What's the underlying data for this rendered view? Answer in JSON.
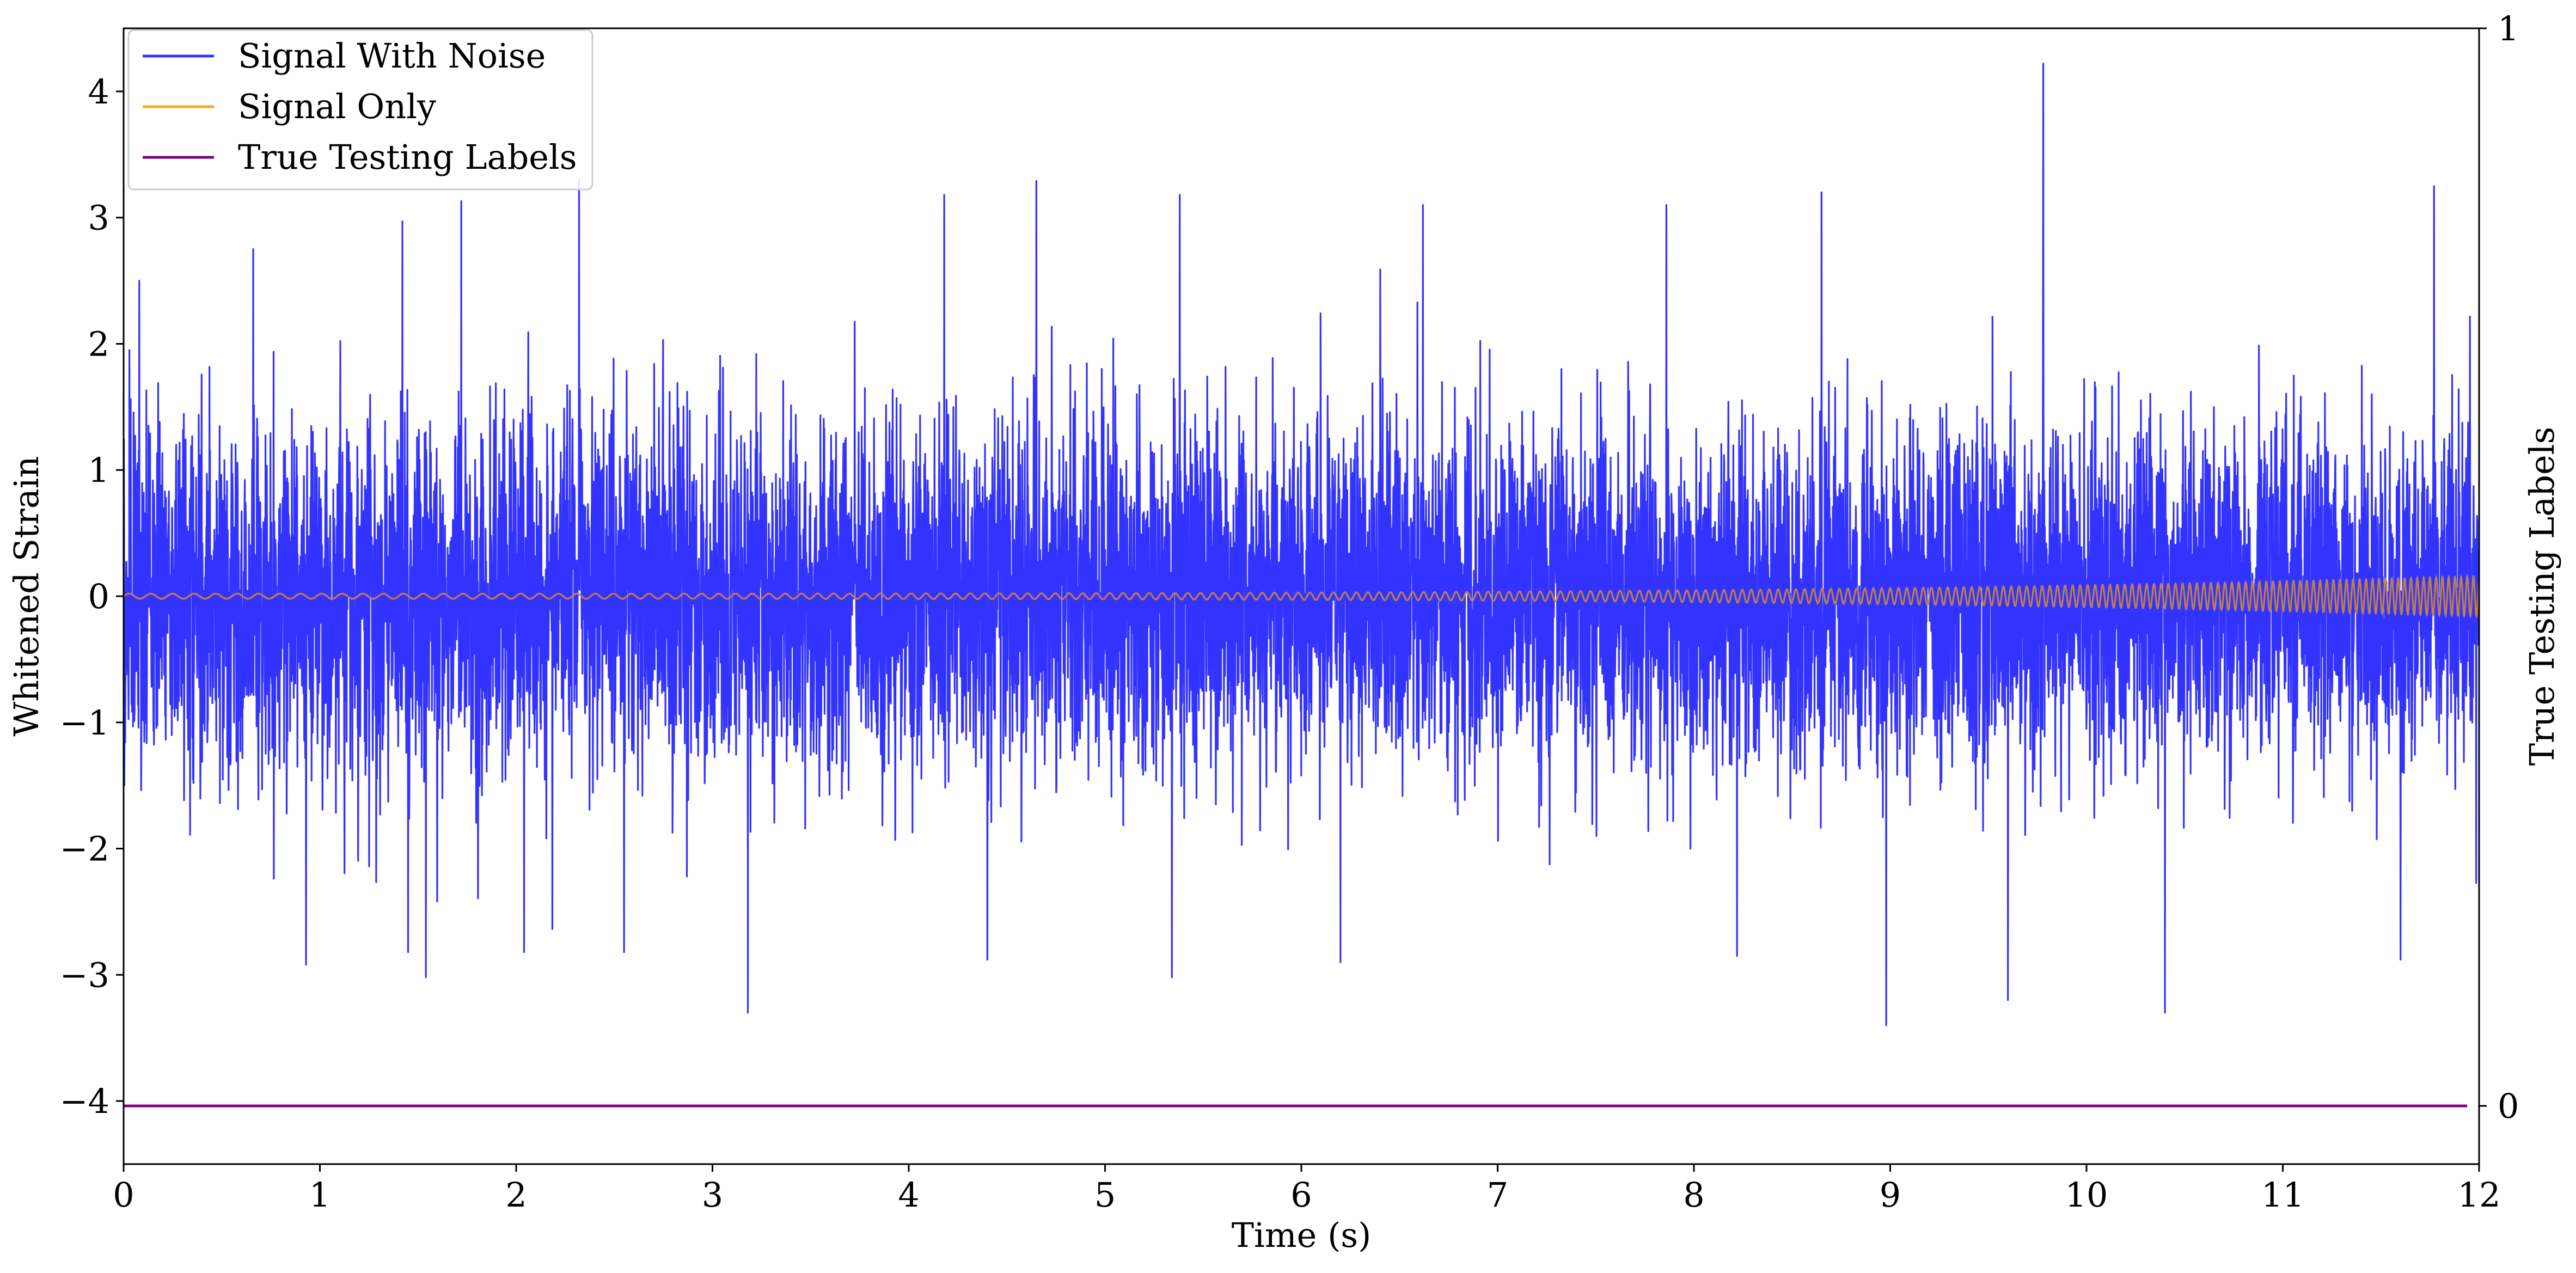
{
  "chart_data": {
    "type": "line",
    "title": "",
    "xlabel": "Time (s)",
    "ylabel": "Whitened Strain",
    "y2label": "True Testing Labels",
    "xlim": [
      0,
      12
    ],
    "ylim": [
      -4.5,
      4.5
    ],
    "y2lim": [
      -0.054,
      1.0
    ],
    "x_ticks": [
      0,
      1,
      2,
      3,
      4,
      5,
      6,
      7,
      8,
      9,
      10,
      11,
      12
    ],
    "y_ticks": [
      -4,
      -3,
      -2,
      -1,
      0,
      1,
      2,
      3,
      4
    ],
    "y2_ticks": [
      0,
      1
    ],
    "grid": false,
    "legend_position": "top-left",
    "colors": {
      "noise": "#3333ff",
      "signal": "#f5a623",
      "overlap": "#c8833c",
      "labels": "#800080"
    },
    "series": [
      {
        "name": "Signal With Noise",
        "description_stats": {
          "mean": 0,
          "std": 0.68,
          "min": -3.4,
          "max": 4.22
        },
        "peaks": [
          {
            "x": 0.03,
            "y": 1.95
          },
          {
            "x": 0.08,
            "y": 2.5
          },
          {
            "x": 0.66,
            "y": 2.75
          },
          {
            "x": 0.93,
            "y": -2.92
          },
          {
            "x": 1.42,
            "y": 2.97
          },
          {
            "x": 1.45,
            "y": -2.82
          },
          {
            "x": 1.54,
            "y": -3.02
          },
          {
            "x": 1.72,
            "y": 3.13
          },
          {
            "x": 2.04,
            "y": -2.82
          },
          {
            "x": 2.32,
            "y": 3.3
          },
          {
            "x": 2.55,
            "y": -2.82
          },
          {
            "x": 3.18,
            "y": -3.3
          },
          {
            "x": 4.18,
            "y": 3.18
          },
          {
            "x": 4.4,
            "y": -2.88
          },
          {
            "x": 4.65,
            "y": 3.29
          },
          {
            "x": 5.34,
            "y": -3.02
          },
          {
            "x": 5.38,
            "y": 3.18
          },
          {
            "x": 6.2,
            "y": -2.9
          },
          {
            "x": 6.62,
            "y": 3.1
          },
          {
            "x": 7.86,
            "y": 3.1
          },
          {
            "x": 8.22,
            "y": -2.85
          },
          {
            "x": 8.65,
            "y": 3.2
          },
          {
            "x": 8.98,
            "y": -3.4
          },
          {
            "x": 9.6,
            "y": -3.2
          },
          {
            "x": 9.78,
            "y": 4.22
          },
          {
            "x": 10.4,
            "y": -3.3
          },
          {
            "x": 11.6,
            "y": -2.88
          },
          {
            "x": 11.77,
            "y": 3.25
          }
        ]
      },
      {
        "name": "Signal Only",
        "description": "chirp increasing in frequency and amplitude",
        "amplitude_start": 0.02,
        "amplitude_end": 0.16,
        "freq_start_hz": 9,
        "freq_end_hz": 32
      },
      {
        "name": "True Testing Labels",
        "axis": "y2",
        "x": [
          0,
          12
        ],
        "values": [
          0,
          0
        ]
      }
    ]
  }
}
